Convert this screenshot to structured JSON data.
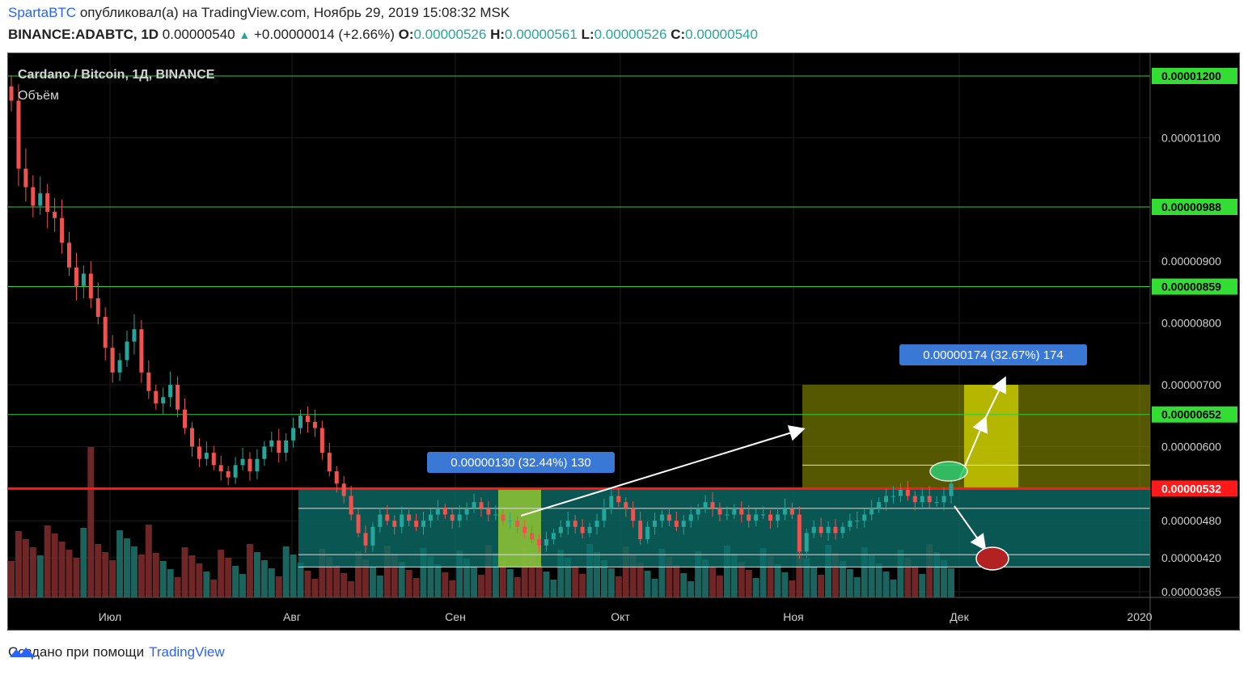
{
  "header": {
    "user": "SpartaBTC",
    "published": " опубликовал(а) на TradingView.com, Ноябрь 29, 2019 15:08:32 MSK",
    "symbol": "BINANCE:ADABTC, 1D",
    "price": "0.00000540",
    "change": "+0.00000014 (+2.66%)",
    "o_label": "O:",
    "o_value": "0.00000526",
    "h_label": "H:",
    "h_value": "0.00000561",
    "l_label": "L:",
    "l_value": "0.00000526",
    "c_label": "C:",
    "c_value": "0.00000540"
  },
  "legend": {
    "title": "Cardano / Bitcoin, 1Д, BINANCE",
    "volume": "Объём"
  },
  "footer": {
    "created": "Создано при помощи",
    "brand": "TradingView"
  },
  "colors": {
    "background": "#000000",
    "up": "#26a69a",
    "down": "#ef5350",
    "level_line": "#2ecc40",
    "resistance": "#ff1a1a",
    "target_zone": "#9aa000",
    "range_zone": "#0b6b66",
    "measure_label": "#3a78d6"
  },
  "chart_data": {
    "type": "candlestick",
    "title": "Cardano / Bitcoin, 1Д, BINANCE",
    "x_ticks": [
      "Июл",
      "Авг",
      "Сен",
      "Окт",
      "Ноя",
      "Дек",
      "2020"
    ],
    "y_ticks": [
      "0.00001100",
      "0.00000900",
      "0.00000800",
      "0.00000700",
      "0.00000600",
      "0.00000480",
      "0.00000420",
      "0.00000365"
    ],
    "y_range": [
      3.5e-06,
      1.24e-05
    ],
    "levels": [
      {
        "label": "0.00001200",
        "value": 1.2e-05,
        "color": "green"
      },
      {
        "label": "0.00000988",
        "value": 9.88e-06,
        "color": "green"
      },
      {
        "label": "0.00000859",
        "value": 8.59e-06,
        "color": "green"
      },
      {
        "label": "0.00000652",
        "value": 6.52e-06,
        "color": "green"
      },
      {
        "label": "0.00000532",
        "value": 5.32e-06,
        "color": "red"
      }
    ],
    "measures": [
      {
        "label": "0.00000130 (32.44%) 130"
      },
      {
        "label": "0.00000174 (32.67%) 174"
      }
    ],
    "closes": [
      1.16e-05,
      1.05e-05,
      1.02e-05,
      9.9e-06,
      1.01e-05,
      9.8e-06,
      9.7e-06,
      9.3e-06,
      8.9e-06,
      8.6e-06,
      8.8e-06,
      8.4e-06,
      8.1e-06,
      7.6e-06,
      7.2e-06,
      7.4e-06,
      7.7e-06,
      7.9e-06,
      7.2e-06,
      6.9e-06,
      6.7e-06,
      6.8e-06,
      7e-06,
      6.6e-06,
      6.3e-06,
      6e-06,
      5.8e-06,
      5.9e-06,
      5.7e-06,
      5.6e-06,
      5.5e-06,
      5.7e-06,
      5.8e-06,
      5.6e-06,
      5.8e-06,
      6e-06,
      6.1e-06,
      5.9e-06,
      6.1e-06,
      6.3e-06,
      6.5e-06,
      6.4e-06,
      6.3e-06,
      5.9e-06,
      5.6e-06,
      5.4e-06,
      5.2e-06,
      4.9e-06,
      4.6e-06,
      4.4e-06,
      4.7e-06,
      4.9e-06,
      4.8e-06,
      4.7e-06,
      4.9e-06,
      4.8e-06,
      4.7e-06,
      4.8e-06,
      4.9e-06,
      5e-06,
      4.9e-06,
      4.8e-06,
      4.9e-06,
      5e-06,
      5.1e-06,
      5e-06,
      4.9e-06,
      4.9e-06,
      4.8e-06,
      4.8e-06,
      4.7e-06,
      4.6e-06,
      4.5e-06,
      4.4e-06,
      4.5e-06,
      4.6e-06,
      4.7e-06,
      4.8e-06,
      4.7e-06,
      4.6e-06,
      4.7e-06,
      4.8e-06,
      5e-06,
      5.2e-06,
      5.1e-06,
      5e-06,
      4.8e-06,
      4.5e-06,
      4.7e-06,
      4.8e-06,
      4.9e-06,
      4.8e-06,
      4.7e-06,
      4.8e-06,
      4.9e-06,
      5e-06,
      5.1e-06,
      5e-06,
      4.9e-06,
      4.9e-06,
      5e-06,
      4.9e-06,
      4.8e-06,
      4.9e-06,
      4.9e-06,
      4.8e-06,
      4.9e-06,
      5e-06,
      4.9e-06,
      4.3e-06,
      4.6e-06,
      4.7e-06,
      4.6e-06,
      4.7e-06,
      4.6e-06,
      4.7e-06,
      4.8e-06,
      4.8e-06,
      4.9e-06,
      5e-06,
      5.1e-06,
      5.2e-06,
      5.2e-06,
      5.3e-06,
      5.2e-06,
      5.1e-06,
      5.2e-06,
      5.1e-06,
      5.1e-06,
      5.2e-06,
      5.4e-06
    ]
  }
}
